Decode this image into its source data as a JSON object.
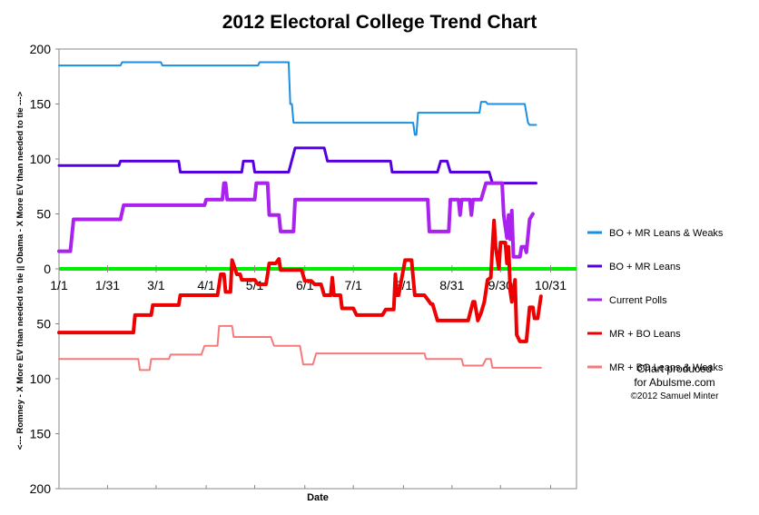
{
  "chart_data": {
    "type": "line",
    "title": "2012 Electoral College Trend Chart",
    "xlabel": "Date",
    "ylabel": "<--- Romney - X More EV than needed to tie ||  Obama - X More EV than needed to tie --->",
    "ylim": [
      -200,
      200
    ],
    "xlim": [
      0,
      320
    ],
    "yticks": [
      {
        "value": 200,
        "label": "200"
      },
      {
        "value": 150,
        "label": "150"
      },
      {
        "value": 100,
        "label": "100"
      },
      {
        "value": 50,
        "label": "50"
      },
      {
        "value": 0,
        "label": "0"
      },
      {
        "value": -50,
        "label": "50"
      },
      {
        "value": -100,
        "label": "100"
      },
      {
        "value": -150,
        "label": "150"
      },
      {
        "value": -200,
        "label": "200"
      }
    ],
    "xticks": [
      {
        "value": 0,
        "label": "1/1"
      },
      {
        "value": 30,
        "label": "1/31"
      },
      {
        "value": 60,
        "label": "3/1"
      },
      {
        "value": 91,
        "label": "4/1"
      },
      {
        "value": 121,
        "label": "5/1"
      },
      {
        "value": 152,
        "label": "6/1"
      },
      {
        "value": 182,
        "label": "7/1"
      },
      {
        "value": 213,
        "label": "8/1"
      },
      {
        "value": 243,
        "label": "8/31"
      },
      {
        "value": 273,
        "label": "9/30"
      },
      {
        "value": 304,
        "label": "10/31"
      }
    ],
    "grid": false,
    "legend_position": "right",
    "zero_line_color": "#00ee00",
    "series": [
      {
        "name": "BO + MR Leans & Weaks",
        "color": "#1a8fe0",
        "width": 2,
        "points": [
          [
            0,
            185
          ],
          [
            38,
            185
          ],
          [
            39,
            188
          ],
          [
            63,
            188
          ],
          [
            64,
            185
          ],
          [
            123,
            185
          ],
          [
            124,
            188
          ],
          [
            142,
            188
          ],
          [
            143,
            150
          ],
          [
            144,
            150
          ],
          [
            145,
            133
          ],
          [
            219,
            133
          ],
          [
            220,
            122
          ],
          [
            221,
            122
          ],
          [
            222,
            142
          ],
          [
            260,
            142
          ],
          [
            261,
            152
          ],
          [
            264,
            152
          ],
          [
            265,
            150
          ],
          [
            288,
            150
          ],
          [
            290,
            133
          ],
          [
            291,
            131
          ],
          [
            295,
            131
          ]
        ]
      },
      {
        "name": "BO + MR Leans",
        "color": "#5500dd",
        "width": 3,
        "points": [
          [
            0,
            94
          ],
          [
            37,
            94
          ],
          [
            38,
            98
          ],
          [
            74,
            98
          ],
          [
            75,
            88
          ],
          [
            113,
            88
          ],
          [
            114,
            98
          ],
          [
            120,
            98
          ],
          [
            121,
            88
          ],
          [
            142,
            88
          ],
          [
            146,
            110
          ],
          [
            164,
            110
          ],
          [
            166,
            98
          ],
          [
            205,
            98
          ],
          [
            206,
            88
          ],
          [
            234,
            88
          ],
          [
            236,
            98
          ],
          [
            240,
            98
          ],
          [
            242,
            88
          ],
          [
            266,
            88
          ],
          [
            268,
            78
          ],
          [
            295,
            78
          ]
        ]
      },
      {
        "name": "Current Polls",
        "color": "#aa22ee",
        "width": 4,
        "points": [
          [
            0,
            16
          ],
          [
            7,
            16
          ],
          [
            9,
            45
          ],
          [
            38,
            45
          ],
          [
            40,
            58
          ],
          [
            90,
            58
          ],
          [
            91,
            63
          ],
          [
            101,
            63
          ],
          [
            102,
            78
          ],
          [
            103,
            78
          ],
          [
            104,
            63
          ],
          [
            121,
            63
          ],
          [
            122,
            78
          ],
          [
            129,
            78
          ],
          [
            130,
            49
          ],
          [
            136,
            49
          ],
          [
            137,
            34
          ],
          [
            145,
            34
          ],
          [
            146,
            63
          ],
          [
            228,
            63
          ],
          [
            229,
            34
          ],
          [
            241,
            34
          ],
          [
            242,
            63
          ],
          [
            247,
            63
          ],
          [
            248,
            49
          ],
          [
            249,
            63
          ],
          [
            254,
            63
          ],
          [
            255,
            49
          ],
          [
            256,
            63
          ],
          [
            261,
            63
          ],
          [
            264,
            78
          ],
          [
            274,
            78
          ],
          [
            275,
            49
          ],
          [
            276,
            38
          ],
          [
            277,
            28
          ],
          [
            278,
            49
          ],
          [
            279,
            27
          ],
          [
            280,
            53
          ],
          [
            281,
            11
          ],
          [
            285,
            11
          ],
          [
            286,
            20
          ],
          [
            288,
            20
          ],
          [
            289,
            15
          ],
          [
            291,
            45
          ],
          [
            293,
            50
          ]
        ]
      },
      {
        "name": "MR + BO Leans",
        "color": "#ee0000",
        "width": 4,
        "points": [
          [
            0,
            -58
          ],
          [
            46,
            -58
          ],
          [
            47,
            -42
          ],
          [
            57,
            -42
          ],
          [
            58,
            -33
          ],
          [
            74,
            -33
          ],
          [
            75,
            -24
          ],
          [
            98,
            -24
          ],
          [
            100,
            -5
          ],
          [
            102,
            -5
          ],
          [
            103,
            -21
          ],
          [
            106,
            -21
          ],
          [
            107,
            8
          ],
          [
            110,
            -5
          ],
          [
            112,
            -5
          ],
          [
            113,
            -10
          ],
          [
            121,
            -10
          ],
          [
            123,
            -14
          ],
          [
            128,
            -14
          ],
          [
            129,
            -5
          ],
          [
            130,
            5
          ],
          [
            134,
            5
          ],
          [
            136,
            9
          ],
          [
            137,
            -1
          ],
          [
            150,
            -1
          ],
          [
            152,
            -11
          ],
          [
            156,
            -11
          ],
          [
            158,
            -14
          ],
          [
            162,
            -14
          ],
          [
            164,
            -24
          ],
          [
            168,
            -24
          ],
          [
            169,
            -8
          ],
          [
            170,
            -24
          ],
          [
            174,
            -24
          ],
          [
            175,
            -36
          ],
          [
            182,
            -36
          ],
          [
            184,
            -42
          ],
          [
            200,
            -42
          ],
          [
            202,
            -37
          ],
          [
            207,
            -37
          ],
          [
            208,
            -5
          ],
          [
            209,
            -24
          ],
          [
            210,
            -24
          ],
          [
            214,
            8
          ],
          [
            218,
            8
          ],
          [
            220,
            -24
          ],
          [
            226,
            -24
          ],
          [
            230,
            -32
          ],
          [
            231,
            -32
          ],
          [
            234,
            -47
          ],
          [
            253,
            -47
          ],
          [
            256,
            -30
          ],
          [
            257,
            -30
          ],
          [
            259,
            -47
          ],
          [
            261,
            -40
          ],
          [
            263,
            -30
          ],
          [
            265,
            -10
          ],
          [
            267,
            -8
          ],
          [
            268,
            20
          ],
          [
            269,
            44
          ],
          [
            270,
            20
          ],
          [
            272,
            0
          ],
          [
            273,
            24
          ],
          [
            276,
            24
          ],
          [
            277,
            5
          ],
          [
            278,
            20
          ],
          [
            279,
            -20
          ],
          [
            280,
            -30
          ],
          [
            282,
            -10
          ],
          [
            283,
            -60
          ],
          [
            285,
            -66
          ],
          [
            289,
            -66
          ],
          [
            291,
            -35
          ],
          [
            293,
            -35
          ],
          [
            294,
            -45
          ],
          [
            296,
            -45
          ],
          [
            298,
            -25
          ]
        ]
      },
      {
        "name": "MR + BO Leans & Weaks",
        "color": "#f77a7a",
        "width": 2,
        "points": [
          [
            0,
            -82
          ],
          [
            49,
            -82
          ],
          [
            50,
            -92
          ],
          [
            56,
            -92
          ],
          [
            57,
            -82
          ],
          [
            68,
            -82
          ],
          [
            69,
            -78
          ],
          [
            88,
            -78
          ],
          [
            90,
            -70
          ],
          [
            98,
            -70
          ],
          [
            99,
            -52
          ],
          [
            107,
            -52
          ],
          [
            108,
            -62
          ],
          [
            131,
            -62
          ],
          [
            133,
            -70
          ],
          [
            149,
            -70
          ],
          [
            151,
            -87
          ],
          [
            157,
            -87
          ],
          [
            159,
            -77
          ],
          [
            226,
            -77
          ],
          [
            227,
            -82
          ],
          [
            249,
            -82
          ],
          [
            250,
            -88
          ],
          [
            262,
            -88
          ],
          [
            264,
            -82
          ],
          [
            267,
            -82
          ],
          [
            268,
            -90
          ],
          [
            298,
            -90
          ]
        ]
      }
    ]
  },
  "legend": {
    "items": [
      {
        "label": "BO + MR Leans & Weaks",
        "color": "#1a8fe0"
      },
      {
        "label": "BO + MR Leans",
        "color": "#5500dd"
      },
      {
        "label": "Current Polls",
        "color": "#aa22ee"
      },
      {
        "label": "MR + BO Leans",
        "color": "#ee0000"
      },
      {
        "label": "MR + BO Leans & Weaks",
        "color": "#f77a7a"
      }
    ]
  },
  "credit": {
    "line1": "Chart produced",
    "line2": "for Abulsme.com",
    "line3": "©2012 Samuel Minter"
  }
}
